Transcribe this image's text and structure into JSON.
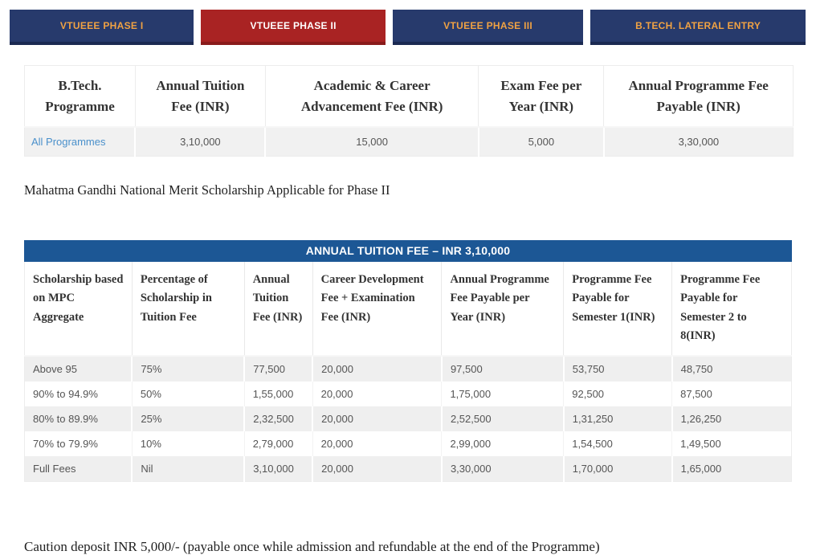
{
  "tabs": [
    {
      "label": "VTUEEE PHASE I",
      "active": false
    },
    {
      "label": "VTUEEE PHASE II",
      "active": true
    },
    {
      "label": "VTUEEE PHASE III",
      "active": false
    },
    {
      "label": "B.TECH. LATERAL ENTRY",
      "active": false
    }
  ],
  "programme_fee_table": {
    "headers": [
      "B.Tech. Programme",
      "Annual Tuition Fee (INR)",
      "Academic & Career Advancement Fee (INR)",
      "Exam Fee per Year (INR)",
      "Annual Programme Fee Payable (INR)"
    ],
    "row": {
      "programme": "All Programmes",
      "values": [
        "3,10,000",
        "15,000",
        "5,000",
        "3,30,000"
      ]
    }
  },
  "scholarship_note": "Mahatma Gandhi National Merit Scholarship Applicable for Phase II",
  "scholarship_table": {
    "title": "ANNUAL TUITION FEE – INR 3,10,000",
    "headers": [
      "Scholarship based on MPC Aggregate",
      "Percentage of Scholarship in Tuition Fee",
      "Annual Tuition Fee (INR)",
      "Career Development Fee + Examination Fee (INR)",
      "Annual Programme Fee Payable per Year (INR)",
      "Programme Fee Payable for Semester 1(INR)",
      "Programme Fee Payable for Semester 2 to 8(INR)"
    ],
    "rows": [
      [
        "Above 95",
        "75%",
        "77,500",
        "20,000",
        "97,500",
        "53,750",
        "48,750"
      ],
      [
        "90% to 94.9%",
        "50%",
        "1,55,000",
        "20,000",
        "1,75,000",
        "92,500",
        "87,500"
      ],
      [
        "80% to 89.9%",
        "25%",
        "2,32,500",
        "20,000",
        "2,52,500",
        "1,31,250",
        "1,26,250"
      ],
      [
        "70% to 79.9%",
        "10%",
        "2,79,000",
        "20,000",
        "2,99,000",
        "1,54,500",
        "1,49,500"
      ],
      [
        "Full Fees",
        "Nil",
        "3,10,000",
        "20,000",
        "3,30,000",
        "1,70,000",
        "1,65,000"
      ]
    ]
  },
  "caution_note": "Caution deposit INR 5,000/- (payable once while admission and refundable at the end of the Programme)",
  "colors": {
    "tab_navy": "#273a6c",
    "tab_active_red": "#a92323",
    "tab_gold_text": "#f0a243",
    "banner_blue": "#1c5795",
    "link_blue": "#4a90cb",
    "row_gray": "#efefef"
  }
}
